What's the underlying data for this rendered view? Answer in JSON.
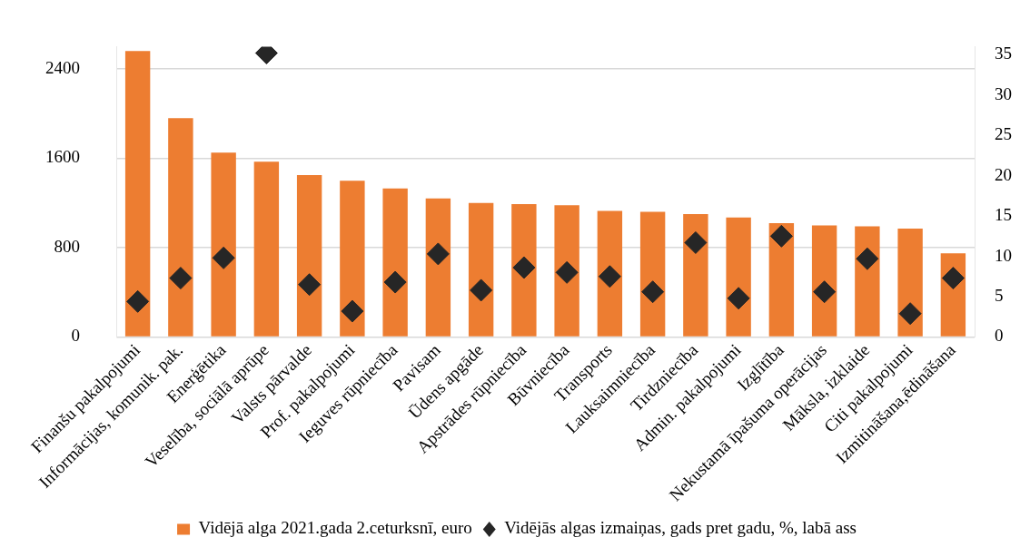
{
  "chart_data": {
    "type": "bar",
    "categories": [
      "Finanšu pakalpojumi",
      "Informācijas, komunik. pak.",
      "Enerģētika",
      "Veselība, sociālā aprūpe",
      "Valsts pārvalde",
      "Prof. pakalpojumi",
      "Ieguves rūpniecība",
      "Pavisam",
      "Ūdens apgāde",
      "Apstrādes rūpniecība",
      "Būvniecība",
      "Transports",
      "Lauksaimniecība",
      "Tirdzniecība",
      "Admin. pakalpojumi",
      "Izglītība",
      "Nekustamā īpašuma operācijas",
      "Māksla, izklaide",
      "Citi pakalpojumi",
      "Izmitināšana,ēdināšana"
    ],
    "series": [
      {
        "name": "Vidējā alga 2021.gada 2.ceturksnī, euro",
        "color": "#ed7d31",
        "values": [
          2560,
          1960,
          1650,
          1570,
          1450,
          1400,
          1330,
          1240,
          1200,
          1190,
          1180,
          1130,
          1120,
          1100,
          1070,
          1020,
          1000,
          990,
          970,
          750
        ]
      },
      {
        "name": "Vidējās algas izmaiņas, gads pret gadu, %, labā ass",
        "type": "scatter",
        "axis": "y2",
        "color": "#262626",
        "values": [
          4.4,
          7.3,
          9.8,
          35.2,
          6.5,
          3.2,
          6.8,
          10.3,
          5.8,
          8.6,
          8.0,
          7.5,
          5.6,
          11.7,
          4.8,
          12.5,
          5.6,
          9.7,
          2.9,
          7.3
        ]
      }
    ],
    "ylim": [
      0,
      2600
    ],
    "yticks": [
      0,
      800,
      1600,
      2400
    ],
    "y2lim": [
      0,
      36
    ],
    "y2ticks": [
      0,
      5,
      10,
      15,
      20,
      25,
      30,
      35
    ],
    "grid": "y",
    "legend": "bottom",
    "marker": "diamond"
  }
}
